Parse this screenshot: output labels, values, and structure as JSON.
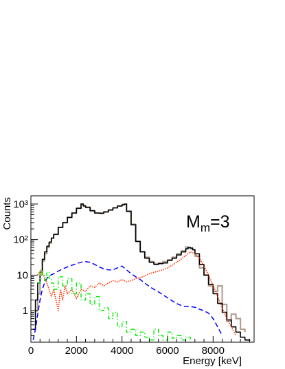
{
  "chart_data": {
    "type": "line",
    "xlabel": "Energy [keV]",
    "ylabel": "Counts",
    "annotation": {
      "main": "M",
      "sub": "m",
      "tail": "=3"
    },
    "xlim": [
      0,
      9800
    ],
    "ylim": [
      0.13,
      1700
    ],
    "y_scale": "log",
    "x_ticks": [
      0,
      2000,
      4000,
      6000,
      8000
    ],
    "x_tick_labels": [
      "0",
      "2000",
      "4000",
      "6000",
      "8000"
    ],
    "y_ticks": [
      1,
      10,
      100,
      1000
    ],
    "y_tick_labels": [
      "1",
      "10",
      "10²",
      "10³"
    ],
    "grid": false,
    "series": [
      {
        "style": "experimental-histogram",
        "color": "#b0a090",
        "x": [
          200,
          300,
          400,
          500,
          600,
          700,
          800,
          900,
          1000,
          1200,
          1400,
          1600,
          1800,
          2000,
          2200,
          2300,
          2400,
          2600,
          2800,
          3000,
          3200,
          3400,
          3600,
          3800,
          4000,
          4100,
          4200,
          4400,
          4600,
          4800,
          5000,
          5200,
          5400,
          5600,
          5800,
          6000,
          6200,
          6400,
          6600,
          6800,
          6900,
          7000,
          7100,
          7200,
          7400,
          7600,
          7800,
          8000,
          8200,
          8400,
          8600,
          8800,
          9000,
          9200,
          9400
        ],
        "values": [
          1.0,
          3.0,
          10,
          25,
          40,
          60,
          80,
          110,
          140,
          220,
          300,
          420,
          560,
          760,
          1000,
          900,
          820,
          640,
          560,
          560,
          600,
          680,
          780,
          880,
          970,
          1000,
          640,
          270,
          90,
          46,
          32,
          24,
          21,
          22,
          24,
          27,
          32,
          40,
          48,
          62,
          58,
          56,
          52,
          34,
          16,
          10,
          5,
          3.5,
          5,
          1.5,
          0.5,
          0.8,
          0.6,
          0.3,
          0.25
        ]
      },
      {
        "style": "total-fit",
        "color": "#000000",
        "x": [
          100,
          200,
          300,
          400,
          500,
          600,
          700,
          800,
          900,
          1000,
          1200,
          1400,
          1600,
          1800,
          2000,
          2200,
          2300,
          2400,
          2600,
          2800,
          3000,
          3200,
          3400,
          3600,
          3800,
          4000,
          4100,
          4200,
          4400,
          4600,
          4800,
          5000,
          5200,
          5400,
          5600,
          5800,
          6000,
          6200,
          6400,
          6600,
          6800,
          6900,
          7000,
          7100,
          7200,
          7400,
          7600,
          7800,
          8000,
          8200,
          8400,
          8600,
          8800,
          9000,
          9200,
          9400,
          9600
        ],
        "values": [
          0.3,
          2.0,
          6.0,
          12,
          28,
          45,
          65,
          85,
          110,
          140,
          220,
          300,
          420,
          560,
          760,
          1000,
          880,
          800,
          650,
          560,
          550,
          600,
          680,
          780,
          880,
          950,
          990,
          620,
          260,
          88,
          45,
          30,
          23,
          20,
          21,
          22,
          26,
          30,
          37,
          45,
          55,
          60,
          58,
          52,
          40,
          20,
          10,
          5.5,
          3,
          1.6,
          0.9,
          0.55,
          0.35,
          0.25,
          0.18,
          0.15,
          0.14
        ]
      },
      {
        "style": "blue-dashed-component",
        "color": "#0000ff",
        "x": [
          100,
          200,
          300,
          400,
          500,
          600,
          700,
          800,
          1000,
          1200,
          1400,
          1600,
          1800,
          2000,
          2200,
          2400,
          2600,
          2800,
          3000,
          3200,
          3400,
          3600,
          3800,
          4000,
          4200,
          4400,
          4600,
          4800,
          5000,
          5200,
          5400,
          5600,
          5800,
          6000,
          6200,
          6400,
          6600,
          6800,
          7000,
          7200,
          7400,
          7600,
          7800,
          8000,
          8200,
          8400
        ],
        "values": [
          0.15,
          0.3,
          0.8,
          2.0,
          4.0,
          6.0,
          8.0,
          9.5,
          11,
          13,
          15,
          17,
          19,
          21,
          23,
          24,
          23,
          20,
          17,
          15,
          14,
          14,
          16,
          18,
          14,
          11,
          9,
          7.5,
          6,
          4.8,
          4.0,
          3.4,
          2.8,
          2.3,
          1.9,
          1.6,
          1.4,
          1.3,
          1.3,
          1.25,
          1.1,
          1.0,
          0.85,
          0.6,
          0.35,
          0.2
        ]
      },
      {
        "style": "red-dotted-component",
        "color": "#ff3300",
        "x": [
          300,
          400,
          500,
          600,
          700,
          800,
          900,
          1000,
          1100,
          1200,
          1300,
          1400,
          1500,
          1600,
          1800,
          2000,
          2200,
          2400,
          2600,
          2800,
          3000,
          3200,
          3400,
          3600,
          3800,
          4000,
          4200,
          4400,
          4600,
          4800,
          5000,
          5200,
          5400,
          5600,
          5800,
          6000,
          6200,
          6400,
          6600,
          6800,
          7000,
          7200,
          7400,
          7600,
          7800,
          8000,
          8200,
          8400,
          8600,
          8800,
          9000
        ],
        "values": [
          10,
          13,
          11,
          9,
          6,
          4,
          2.5,
          4,
          2,
          1.0,
          4,
          2,
          5,
          3,
          4,
          2.2,
          4,
          3.5,
          5,
          4.5,
          6,
          5,
          6,
          7,
          6.5,
          7.5,
          6.5,
          7,
          8,
          8.5,
          9.5,
          11,
          12,
          13,
          14,
          16,
          19,
          23,
          28,
          36,
          45,
          40,
          30,
          18,
          10,
          5,
          2.5,
          1.2,
          0.6,
          0.35,
          0.2
        ]
      },
      {
        "style": "green-dashdot-component",
        "color": "#00ee00",
        "x": [
          300,
          400,
          500,
          600,
          700,
          800,
          900,
          1000,
          1200,
          1400,
          1600,
          1800,
          2000,
          2200,
          2400,
          2600,
          2800,
          3000,
          3200,
          3400,
          3600,
          3800,
          4000,
          4200,
          4400,
          4600,
          4800,
          5000,
          5200,
          5400,
          5600,
          5800,
          6000,
          6200,
          6400,
          6600,
          6800,
          7000
        ],
        "values": [
          6,
          14,
          10,
          7,
          12,
          8,
          6,
          4,
          9,
          5,
          8,
          3,
          6,
          2,
          3,
          1.5,
          2.5,
          1,
          1.2,
          0.6,
          0.9,
          0.35,
          0.5,
          0.25,
          0.3,
          0.2,
          0.25,
          0.18,
          0.15,
          0.3,
          0.2,
          0.15,
          0.25,
          0.17,
          0.2,
          0.15,
          0.18,
          0.15
        ]
      }
    ]
  }
}
